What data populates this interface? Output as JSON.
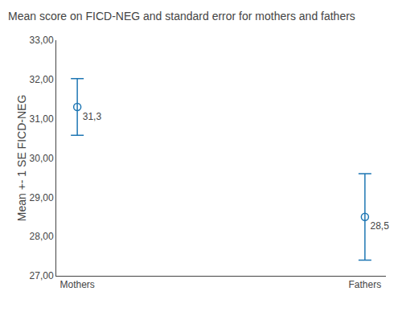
{
  "chart_data": {
    "type": "errorbar",
    "title": "Mean score on FICD-NEG and standard error for mothers and fathers",
    "ylabel": "Mean +- 1 SE FICD-NEG",
    "categories": [
      "Mothers",
      "Fathers"
    ],
    "values": [
      31.3,
      28.5
    ],
    "value_labels": [
      "31,3",
      "28,5"
    ],
    "upper_errors": [
      0.72,
      1.1
    ],
    "lower_errors": [
      0.72,
      1.1
    ],
    "ylim": [
      27.0,
      33.0
    ],
    "yticks": [
      {
        "value": 27.0,
        "label": "27,00"
      },
      {
        "value": 28.0,
        "label": "28,00"
      },
      {
        "value": 29.0,
        "label": "29,00"
      },
      {
        "value": 30.0,
        "label": "30,00"
      },
      {
        "value": 31.0,
        "label": "31,00"
      },
      {
        "value": 32.0,
        "label": "32,00"
      },
      {
        "value": 33.0,
        "label": "33,00"
      }
    ],
    "marker": "circle-open",
    "data_labels": true,
    "grid": false
  }
}
